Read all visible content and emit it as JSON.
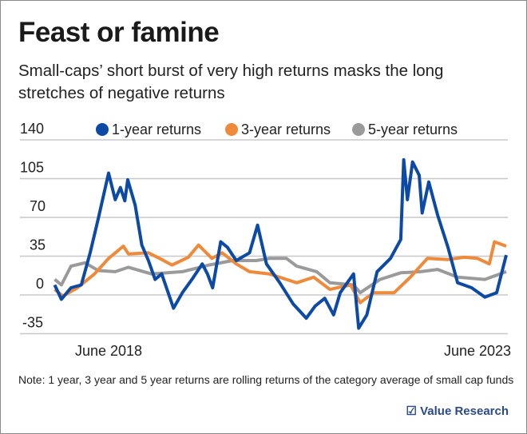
{
  "title": "Feast or famine",
  "subtitle": "Small-caps’ short burst of very high returns masks the long stretches of negative returns",
  "note": "Note: 1 year, 3 year and 5 year returns are rolling returns of the category average of small cap funds",
  "logo": "Value Research",
  "chart_data": {
    "type": "line",
    "xlabel": "",
    "ylabel": "",
    "ylim": [
      -35,
      140
    ],
    "yticks": [
      "140",
      "105",
      "70",
      "35",
      "0",
      "-35"
    ],
    "xtick_labels": [
      {
        "label": "June 2018",
        "x": 2018.42
      },
      {
        "label": "June 2023",
        "x": 2023.42
      }
    ],
    "grid": true,
    "legend": "top",
    "series": [
      {
        "name": "1-year returns",
        "color": "#0d4aa6",
        "points": [
          [
            2017.69,
            9
          ],
          [
            2017.78,
            -4
          ],
          [
            2017.91,
            6.5
          ],
          [
            2018.05,
            9
          ],
          [
            2018.17,
            38
          ],
          [
            2018.28,
            69
          ],
          [
            2018.42,
            110
          ],
          [
            2018.51,
            86
          ],
          [
            2018.58,
            97
          ],
          [
            2018.64,
            85
          ],
          [
            2018.68,
            104
          ],
          [
            2018.78,
            81
          ],
          [
            2018.87,
            45
          ],
          [
            2018.96,
            31
          ],
          [
            2019.05,
            14
          ],
          [
            2019.14,
            19
          ],
          [
            2019.3,
            -12
          ],
          [
            2019.42,
            2
          ],
          [
            2019.55,
            14
          ],
          [
            2019.69,
            28
          ],
          [
            2019.76,
            19
          ],
          [
            2019.83,
            6.5
          ],
          [
            2019.94,
            48
          ],
          [
            2020.03,
            43
          ],
          [
            2020.15,
            31
          ],
          [
            2020.33,
            38
          ],
          [
            2020.44,
            63
          ],
          [
            2020.56,
            28
          ],
          [
            2020.74,
            11
          ],
          [
            2020.92,
            -8
          ],
          [
            2021.1,
            -21
          ],
          [
            2021.22,
            -10
          ],
          [
            2021.35,
            -3
          ],
          [
            2021.47,
            -18
          ],
          [
            2021.56,
            2
          ],
          [
            2021.74,
            19
          ],
          [
            2021.81,
            -30
          ],
          [
            2021.92,
            -18
          ],
          [
            2022.06,
            21
          ],
          [
            2022.24,
            33
          ],
          [
            2022.38,
            50
          ],
          [
            2022.42,
            122
          ],
          [
            2022.47,
            86
          ],
          [
            2022.54,
            120
          ],
          [
            2022.63,
            108
          ],
          [
            2022.67,
            74
          ],
          [
            2022.76,
            102
          ],
          [
            2022.88,
            72
          ],
          [
            2023.02,
            43
          ],
          [
            2023.15,
            11
          ],
          [
            2023.34,
            6.5
          ],
          [
            2023.52,
            -2
          ],
          [
            2023.68,
            2
          ],
          [
            2023.81,
            36
          ]
        ]
      },
      {
        "name": "3-year returns",
        "color": "#ef8a3a",
        "points": [
          [
            2017.69,
            5
          ],
          [
            2017.8,
            -1
          ],
          [
            2018.0,
            6.5
          ],
          [
            2018.23,
            19
          ],
          [
            2018.42,
            33
          ],
          [
            2018.62,
            44
          ],
          [
            2018.69,
            37
          ],
          [
            2018.96,
            38
          ],
          [
            2019.14,
            32
          ],
          [
            2019.28,
            27
          ],
          [
            2019.5,
            34
          ],
          [
            2019.64,
            45
          ],
          [
            2019.82,
            33
          ],
          [
            2019.96,
            38
          ],
          [
            2020.15,
            28
          ],
          [
            2020.33,
            21
          ],
          [
            2020.6,
            19
          ],
          [
            2020.83,
            14
          ],
          [
            2020.97,
            11
          ],
          [
            2021.2,
            16
          ],
          [
            2021.42,
            5
          ],
          [
            2021.7,
            9
          ],
          [
            2021.83,
            -7
          ],
          [
            2022.01,
            2
          ],
          [
            2022.29,
            2
          ],
          [
            2022.51,
            16
          ],
          [
            2022.74,
            33
          ],
          [
            2023.02,
            32
          ],
          [
            2023.24,
            34
          ],
          [
            2023.42,
            33
          ],
          [
            2023.58,
            28
          ],
          [
            2023.65,
            48
          ],
          [
            2023.81,
            44
          ]
        ]
      },
      {
        "name": "5-year returns",
        "color": "#9a9a9a",
        "points": [
          [
            2017.69,
            14
          ],
          [
            2017.78,
            9
          ],
          [
            2017.91,
            26
          ],
          [
            2018.1,
            29
          ],
          [
            2018.28,
            22
          ],
          [
            2018.51,
            21
          ],
          [
            2018.69,
            25
          ],
          [
            2019.0,
            19
          ],
          [
            2019.42,
            21
          ],
          [
            2019.78,
            27
          ],
          [
            2020.1,
            31
          ],
          [
            2020.42,
            31
          ],
          [
            2020.6,
            33
          ],
          [
            2020.83,
            33
          ],
          [
            2020.97,
            26
          ],
          [
            2021.24,
            21
          ],
          [
            2021.42,
            11
          ],
          [
            2021.74,
            9
          ],
          [
            2021.83,
            2
          ],
          [
            2022.1,
            14
          ],
          [
            2022.38,
            20
          ],
          [
            2022.65,
            21
          ],
          [
            2022.88,
            23
          ],
          [
            2023.15,
            16
          ],
          [
            2023.52,
            14
          ],
          [
            2023.81,
            21
          ]
        ]
      }
    ]
  }
}
